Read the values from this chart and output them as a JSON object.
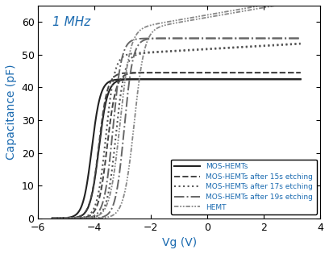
{
  "title": "1 MHz",
  "xlabel": "Vg (V)",
  "ylabel": "Capacitance (pF)",
  "xlim": [
    -6,
    4
  ],
  "ylim": [
    0,
    65
  ],
  "xticks": [
    -6,
    -4,
    -2,
    0,
    2,
    4
  ],
  "yticks": [
    0,
    10,
    20,
    30,
    40,
    50,
    60
  ],
  "curves": [
    {
      "label": "MOS-HEMTs",
      "color": "#222222",
      "linestyle": "solid",
      "linewidth": 1.5,
      "vth": -4.1,
      "cmax": 42.5,
      "steepness": 6.5,
      "flat_slope": 0.0,
      "hysteresis": 0.25
    },
    {
      "label": "MOS-HEMTs after 15s etching",
      "color": "#444444",
      "linestyle": "dashed",
      "linewidth": 1.4,
      "vth": -3.85,
      "cmax": 44.5,
      "steepness": 6.5,
      "flat_slope": 0.0,
      "hysteresis": 0.3
    },
    {
      "label": "MOS-HEMTs after 17s etching",
      "color": "#555555",
      "linestyle": "dotted",
      "linewidth": 1.5,
      "vth": -3.6,
      "cmax": 50.0,
      "steepness": 6.5,
      "flat_slope": 0.5,
      "hysteresis": 0.35
    },
    {
      "label": "MOS-HEMTs after 19s etching",
      "color": "#666666",
      "linestyle": "dashdot",
      "linewidth": 1.4,
      "vth": -3.35,
      "cmax": 55.0,
      "steepness": 6.5,
      "flat_slope": 0.0,
      "hysteresis": 0.4
    },
    {
      "label": "HEMT",
      "color": "#888888",
      "linestyle": "dashdotdotted",
      "linewidth": 1.3,
      "vth": -3.1,
      "cmax": 57.5,
      "steepness": 5.5,
      "flat_slope": 1.5,
      "hysteresis": 0.5
    }
  ],
  "legend_loc": "lower right",
  "legend_fontsize": 6.5,
  "title_fontsize": 11,
  "axis_label_fontsize": 10,
  "tick_fontsize": 9,
  "background_color": "#ffffff",
  "title_color": "#1a6ab0",
  "text_color": "#1a6ab0"
}
